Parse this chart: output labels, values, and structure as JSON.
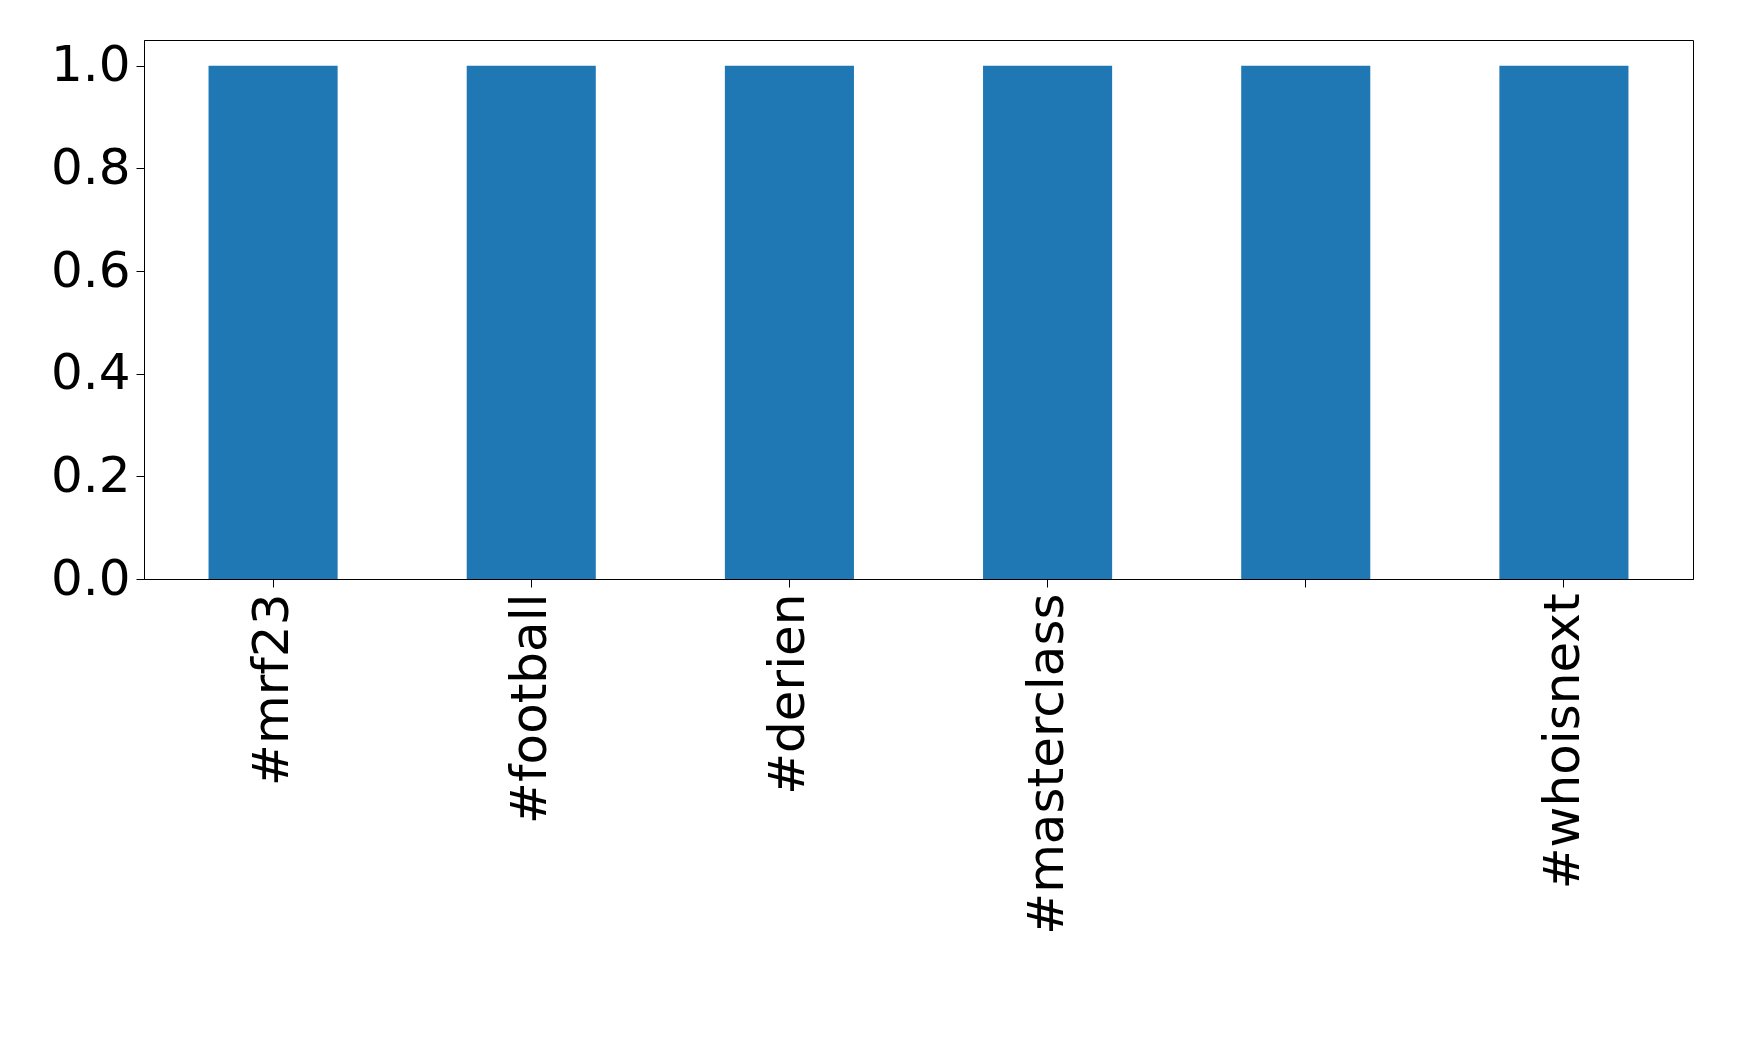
{
  "chart_data": {
    "type": "bar",
    "categories": [
      "#mrf23",
      "#football",
      "#derien",
      "#masterclass",
      null,
      "#whoisnext"
    ],
    "values": [
      1,
      1,
      1,
      1,
      1,
      1
    ],
    "color": "#1f77b4",
    "ylim": [
      0,
      1.05
    ],
    "yticks": [
      {
        "value": 0,
        "label": "0.0"
      },
      {
        "value": 0.2,
        "label": "0.2"
      },
      {
        "value": 0.4,
        "label": "0.4"
      },
      {
        "value": 0.6,
        "label": "0.6"
      },
      {
        "value": 0.8,
        "label": "0.8"
      },
      {
        "value": 1,
        "label": "1.0"
      }
    ],
    "grid": false
  }
}
